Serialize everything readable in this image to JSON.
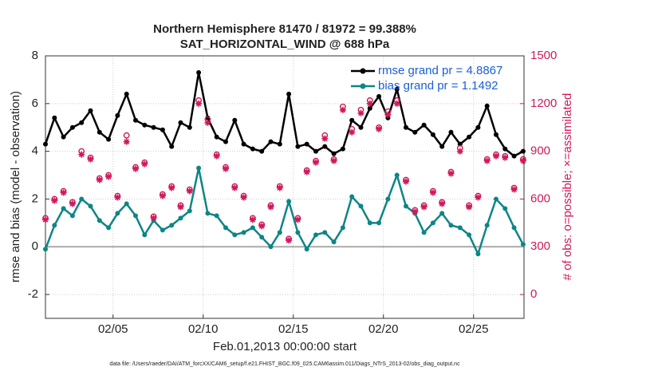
{
  "chart_data": {
    "type": "line",
    "title": "Northern Hemisphere 81470 / 81972 = 99.388%",
    "subtitle": "SAT_HORIZONTAL_WIND @ 688 hPa",
    "x_label": "Feb.01,2013 00:00:00 start",
    "y_label": "rmse and bias (model - observation)",
    "y2_label": "# of obs: o=possible; ×=assimilated",
    "note": "data file: /Users/raeder/DAI/ATM_forcXX/CAM6_setup/f.e21.FHIST_BGC.f09_025.CAM6assim.011/Diags_NTrS_2013-02/obs_diag_output.nc",
    "xlim": [
      1.25,
      27.8
    ],
    "xticks": [
      {
        "value": 5,
        "label": "02/05"
      },
      {
        "value": 10,
        "label": "02/10"
      },
      {
        "value": 15,
        "label": "02/15"
      },
      {
        "value": 20,
        "label": "02/20"
      },
      {
        "value": 25,
        "label": "02/25"
      }
    ],
    "ylim": [
      -3,
      8
    ],
    "yticks": [
      -2,
      0,
      2,
      4,
      6,
      8
    ],
    "y2lim": [
      -150,
      1500
    ],
    "y2ticks": [
      0,
      300,
      600,
      900,
      1200,
      1500
    ],
    "grid": true,
    "legend": "upper right",
    "x": [
      1.25,
      1.75,
      2.25,
      2.75,
      3.25,
      3.75,
      4.25,
      4.75,
      5.25,
      5.75,
      6.25,
      6.75,
      7.25,
      7.75,
      8.25,
      8.75,
      9.25,
      9.75,
      10.25,
      10.75,
      11.25,
      11.75,
      12.25,
      12.75,
      13.25,
      13.75,
      14.25,
      14.75,
      15.25,
      15.75,
      16.25,
      16.75,
      17.25,
      17.75,
      18.25,
      18.75,
      19.25,
      19.75,
      20.25,
      20.75,
      21.25,
      21.75,
      22.25,
      22.75,
      23.25,
      23.75,
      24.25,
      24.75,
      25.25,
      25.75,
      26.25,
      26.75,
      27.25,
      27.75
    ],
    "series": [
      {
        "name": "rmse grand pr = 4.8867",
        "style": "line",
        "color": "#000000",
        "axis": "y",
        "values": [
          4.3,
          5.4,
          4.6,
          5.0,
          5.2,
          5.7,
          4.8,
          4.5,
          5.5,
          6.4,
          5.3,
          5.1,
          5.0,
          4.9,
          4.2,
          5.2,
          5.0,
          7.3,
          5.4,
          4.6,
          4.4,
          5.3,
          4.3,
          4.1,
          4.0,
          4.4,
          4.3,
          6.4,
          4.2,
          4.3,
          4.0,
          4.2,
          3.9,
          4.1,
          5.3,
          5.0,
          5.8,
          6.3,
          5.4,
          6.6,
          5.0,
          4.8,
          5.1,
          4.7,
          4.2,
          4.8,
          4.3,
          4.6,
          5.0,
          5.9,
          4.7,
          4.1,
          3.8,
          4.0
        ]
      },
      {
        "name": "bias grand pr = 1.1492",
        "style": "line",
        "color": "#0e8585",
        "axis": "y",
        "values": [
          -0.1,
          0.9,
          1.6,
          1.3,
          2.0,
          1.7,
          1.1,
          0.8,
          1.4,
          1.8,
          1.3,
          0.5,
          1.1,
          0.7,
          0.9,
          1.2,
          1.5,
          3.3,
          1.4,
          1.3,
          0.8,
          0.5,
          0.6,
          0.8,
          0.4,
          0.0,
          0.6,
          1.9,
          0.6,
          -0.1,
          0.5,
          0.6,
          0.2,
          0.8,
          2.1,
          1.7,
          1.0,
          1.0,
          2.0,
          3.0,
          1.7,
          1.4,
          0.6,
          1.0,
          1.4,
          0.9,
          0.8,
          0.5,
          -0.3,
          0.9,
          2.0,
          1.6,
          0.8,
          0.1
        ]
      },
      {
        "style": "scatter",
        "marker": "o",
        "color": "#d0185a",
        "axis": "y2",
        "values": [
          480,
          600,
          650,
          580,
          900,
          860,
          730,
          750,
          620,
          1000,
          800,
          830,
          490,
          630,
          680,
          560,
          660,
          1220,
          1100,
          880,
          800,
          680,
          620,
          480,
          440,
          560,
          680,
          350,
          480,
          780,
          840,
          1000,
          850,
          1180,
          1040,
          1160,
          1220,
          1050,
          1150,
          1220,
          720,
          530,
          560,
          650,
          580,
          770,
          920,
          560,
          620,
          850,
          880,
          870,
          670,
          850
        ]
      },
      {
        "style": "scatter",
        "marker": "*",
        "color": "#d0185a",
        "axis": "y2",
        "values": [
          470,
          590,
          640,
          570,
          880,
          850,
          720,
          740,
          610,
          960,
          790,
          820,
          480,
          620,
          670,
          550,
          650,
          1200,
          1080,
          870,
          790,
          670,
          610,
          470,
          430,
          550,
          670,
          340,
          470,
          770,
          830,
          980,
          840,
          1160,
          1020,
          1140,
          1200,
          1040,
          1130,
          1200,
          710,
          520,
          550,
          640,
          570,
          760,
          900,
          550,
          610,
          840,
          870,
          860,
          660,
          840
        ]
      }
    ]
  }
}
